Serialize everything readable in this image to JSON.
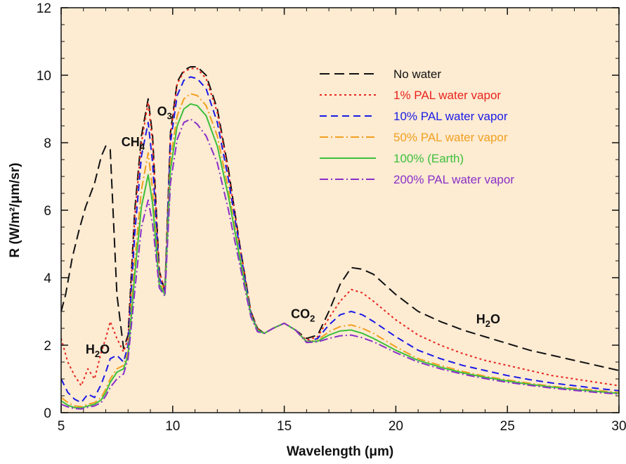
{
  "chart_data": {
    "type": "line",
    "title": "",
    "xlabel": "Wavelength (μm)",
    "ylabel": "R (W/m²/μm/sr)",
    "xlim": [
      5,
      30
    ],
    "ylim": [
      0,
      12
    ],
    "xticks": [
      "5",
      "10",
      "15",
      "20",
      "25",
      "30"
    ],
    "yticks": [
      "0",
      "2",
      "4",
      "6",
      "8",
      "10",
      "12"
    ],
    "background": "#fdebd2",
    "grid": false,
    "legend_position": "top-right",
    "annotations": [
      {
        "base": "H",
        "sub": "2",
        "tail": "O",
        "x": 6.1,
        "y": 1.75
      },
      {
        "base": "CH",
        "sub": "4",
        "tail": "",
        "x": 7.7,
        "y": 7.9
      },
      {
        "base": "O",
        "sub": "3",
        "tail": "",
        "x": 9.3,
        "y": 8.8
      },
      {
        "base": "CO",
        "sub": "2",
        "tail": "",
        "x": 15.3,
        "y": 2.8
      },
      {
        "base": "H",
        "sub": "2",
        "tail": "O",
        "x": 23.6,
        "y": 2.65
      }
    ],
    "series": [
      {
        "name": "No water",
        "color": "#111111",
        "dash": "14,7",
        "x": [
          5,
          5.2,
          5.5,
          5.8,
          6.1,
          6.5,
          6.8,
          7.0,
          7.2,
          7.5,
          7.8,
          8.0,
          8.3,
          8.6,
          8.9,
          9.1,
          9.4,
          9.65,
          9.9,
          10.2,
          10.5,
          10.8,
          11.1,
          11.5,
          12.0,
          12.5,
          13.0,
          13.5,
          13.8,
          14.1,
          14.5,
          15.0,
          15.5,
          16.0,
          16.5,
          17.0,
          17.5,
          18.0,
          18.5,
          19.0,
          20.0,
          21.0,
          22.0,
          23.0,
          24.0,
          25.0,
          26.0,
          27.0,
          28.0,
          29.0,
          30.0
        ],
        "y": [
          3.0,
          3.5,
          4.6,
          5.4,
          6.1,
          6.8,
          7.6,
          7.9,
          7.8,
          3.5,
          1.9,
          2.3,
          6.0,
          8.2,
          9.3,
          8.2,
          4.2,
          3.6,
          8.3,
          9.8,
          10.15,
          10.25,
          10.25,
          10.0,
          9.0,
          7.2,
          5.0,
          3.0,
          2.5,
          2.35,
          2.5,
          2.65,
          2.45,
          2.2,
          2.3,
          3.0,
          3.8,
          4.3,
          4.25,
          4.1,
          3.5,
          3.0,
          2.7,
          2.45,
          2.25,
          2.05,
          1.85,
          1.7,
          1.55,
          1.4,
          1.25
        ]
      },
      {
        "name": "1% PAL water vapor",
        "color": "#e8241c",
        "dash": "3,4",
        "x": [
          5,
          5.3,
          5.6,
          5.9,
          6.2,
          6.5,
          6.8,
          7.0,
          7.2,
          7.5,
          7.8,
          8.0,
          8.3,
          8.6,
          8.9,
          9.1,
          9.4,
          9.65,
          9.9,
          10.2,
          10.5,
          10.8,
          11.1,
          11.5,
          12.0,
          12.5,
          13.0,
          13.5,
          13.8,
          14.1,
          14.5,
          15.0,
          15.5,
          16.0,
          16.5,
          17.0,
          17.5,
          18.0,
          18.5,
          19.0,
          20.0,
          21.0,
          22.0,
          23.0,
          24.0,
          25.0,
          26.0,
          27.0,
          28.0,
          29.0,
          30.0
        ],
        "y": [
          2.2,
          1.5,
          1.1,
          0.8,
          1.3,
          1.0,
          1.8,
          2.2,
          2.7,
          2.2,
          1.8,
          2.2,
          5.8,
          8.0,
          9.2,
          8.0,
          4.2,
          3.6,
          8.2,
          9.75,
          10.1,
          10.2,
          10.2,
          9.9,
          8.9,
          7.1,
          5.0,
          3.0,
          2.5,
          2.35,
          2.5,
          2.65,
          2.45,
          2.15,
          2.25,
          2.8,
          3.3,
          3.65,
          3.55,
          3.3,
          2.75,
          2.3,
          2.0,
          1.75,
          1.55,
          1.4,
          1.25,
          1.1,
          1.0,
          0.9,
          0.8
        ]
      },
      {
        "name": "10% PAL water vapor",
        "color": "#1a1ae6",
        "dash": "10,6",
        "x": [
          5,
          5.3,
          5.6,
          5.9,
          6.2,
          6.5,
          6.8,
          7.0,
          7.2,
          7.5,
          7.8,
          8.0,
          8.3,
          8.6,
          8.9,
          9.1,
          9.4,
          9.65,
          9.9,
          10.2,
          10.5,
          10.8,
          11.1,
          11.5,
          12.0,
          12.5,
          13.0,
          13.5,
          13.8,
          14.1,
          14.5,
          15.0,
          15.5,
          16.0,
          16.5,
          17.0,
          17.5,
          18.0,
          18.5,
          19.0,
          20.0,
          21.0,
          22.0,
          23.0,
          24.0,
          25.0,
          26.0,
          27.0,
          28.0,
          29.0,
          30.0
        ],
        "y": [
          1.0,
          0.6,
          0.4,
          0.3,
          0.55,
          0.45,
          0.85,
          1.2,
          1.6,
          1.7,
          1.5,
          2.0,
          5.3,
          7.6,
          8.6,
          7.4,
          4.0,
          3.55,
          8.0,
          9.4,
          9.85,
          9.95,
          9.9,
          9.6,
          8.6,
          6.9,
          4.9,
          2.95,
          2.45,
          2.35,
          2.5,
          2.65,
          2.45,
          2.1,
          2.2,
          2.6,
          2.9,
          3.0,
          2.9,
          2.7,
          2.25,
          1.85,
          1.6,
          1.4,
          1.25,
          1.1,
          0.98,
          0.88,
          0.8,
          0.72,
          0.65
        ]
      },
      {
        "name": "50% PAL water vapor",
        "color": "#f0a020",
        "dash": "12,4,2,4",
        "x": [
          5,
          5.3,
          5.6,
          5.9,
          6.2,
          6.5,
          6.8,
          7.0,
          7.2,
          7.5,
          7.8,
          8.0,
          8.3,
          8.6,
          8.9,
          9.1,
          9.4,
          9.65,
          9.9,
          10.2,
          10.5,
          10.8,
          11.1,
          11.5,
          12.0,
          12.5,
          13.0,
          13.5,
          13.8,
          14.1,
          14.5,
          15.0,
          15.5,
          16.0,
          16.5,
          17.0,
          17.5,
          18.0,
          18.5,
          19.0,
          20.0,
          21.0,
          22.0,
          23.0,
          24.0,
          25.0,
          26.0,
          27.0,
          28.0,
          29.0,
          30.0
        ],
        "y": [
          0.45,
          0.3,
          0.2,
          0.18,
          0.25,
          0.3,
          0.45,
          0.7,
          1.0,
          1.3,
          1.4,
          1.8,
          4.5,
          6.6,
          7.7,
          6.6,
          3.9,
          3.5,
          7.5,
          8.8,
          9.3,
          9.45,
          9.4,
          9.1,
          8.2,
          6.6,
          4.7,
          2.9,
          2.45,
          2.35,
          2.5,
          2.65,
          2.45,
          2.1,
          2.15,
          2.4,
          2.55,
          2.6,
          2.5,
          2.35,
          1.95,
          1.6,
          1.4,
          1.22,
          1.08,
          0.97,
          0.87,
          0.78,
          0.72,
          0.66,
          0.6
        ]
      },
      {
        "name": "100% (Earth)",
        "color": "#3cc03c",
        "dash": "",
        "x": [
          5,
          5.3,
          5.6,
          5.9,
          6.2,
          6.5,
          6.8,
          7.0,
          7.2,
          7.5,
          7.8,
          8.0,
          8.3,
          8.6,
          8.9,
          9.1,
          9.4,
          9.65,
          9.9,
          10.2,
          10.5,
          10.8,
          11.1,
          11.5,
          12.0,
          12.5,
          13.0,
          13.5,
          13.8,
          14.1,
          14.5,
          15.0,
          15.5,
          16.0,
          16.5,
          17.0,
          17.5,
          18.0,
          18.5,
          19.0,
          20.0,
          21.0,
          22.0,
          23.0,
          24.0,
          25.0,
          26.0,
          27.0,
          28.0,
          29.0,
          30.0
        ],
        "y": [
          0.35,
          0.22,
          0.15,
          0.14,
          0.2,
          0.25,
          0.38,
          0.6,
          0.9,
          1.2,
          1.3,
          1.7,
          4.1,
          6.1,
          7.05,
          6.2,
          3.8,
          3.5,
          7.2,
          8.5,
          9.0,
          9.15,
          9.1,
          8.8,
          7.9,
          6.4,
          4.6,
          2.9,
          2.45,
          2.35,
          2.5,
          2.65,
          2.45,
          2.1,
          2.12,
          2.3,
          2.42,
          2.45,
          2.35,
          2.2,
          1.85,
          1.55,
          1.35,
          1.18,
          1.05,
          0.94,
          0.84,
          0.76,
          0.69,
          0.63,
          0.57
        ]
      },
      {
        "name": "200% PAL water vapor",
        "color": "#8a2fc8",
        "dash": "12,4,2,4",
        "x": [
          5,
          5.3,
          5.6,
          5.9,
          6.2,
          6.5,
          6.8,
          7.0,
          7.2,
          7.5,
          7.8,
          8.0,
          8.3,
          8.6,
          8.9,
          9.1,
          9.4,
          9.65,
          9.9,
          10.2,
          10.5,
          10.8,
          11.1,
          11.5,
          12.0,
          12.5,
          13.0,
          13.5,
          13.8,
          14.1,
          14.5,
          15.0,
          15.5,
          16.0,
          16.5,
          17.0,
          17.5,
          18.0,
          18.5,
          19.0,
          20.0,
          21.0,
          22.0,
          23.0,
          24.0,
          25.0,
          26.0,
          27.0,
          28.0,
          29.0,
          30.0
        ],
        "y": [
          0.25,
          0.17,
          0.12,
          0.11,
          0.16,
          0.2,
          0.3,
          0.5,
          0.75,
          1.0,
          1.15,
          1.6,
          3.6,
          5.5,
          6.3,
          5.6,
          3.7,
          3.45,
          6.8,
          8.1,
          8.6,
          8.7,
          8.55,
          8.2,
          7.4,
          6.0,
          4.4,
          2.85,
          2.4,
          2.35,
          2.5,
          2.65,
          2.45,
          2.08,
          2.1,
          2.2,
          2.28,
          2.3,
          2.22,
          2.1,
          1.78,
          1.5,
          1.3,
          1.14,
          1.01,
          0.9,
          0.81,
          0.73,
          0.66,
          0.6,
          0.55
        ]
      }
    ]
  }
}
